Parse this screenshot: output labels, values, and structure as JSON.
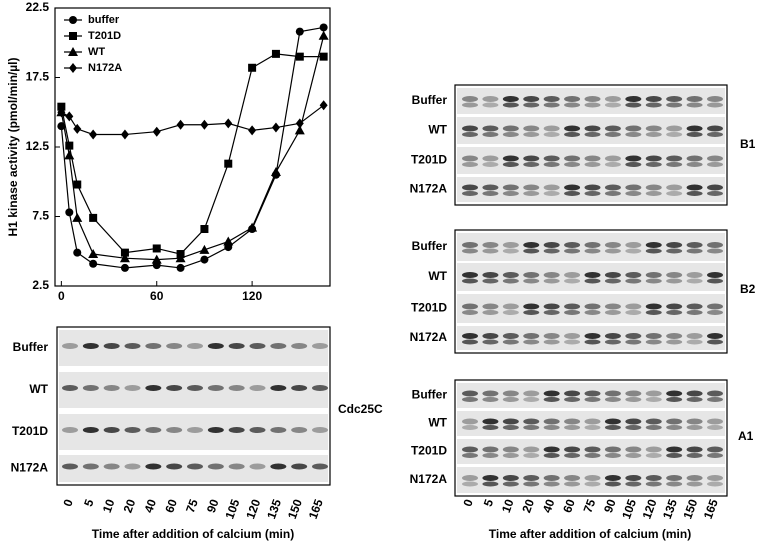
{
  "chart_data": {
    "type": "line",
    "y_label": "H1 kinase activity (pmol/min/µl)",
    "x": [
      0,
      5,
      10,
      20,
      40,
      60,
      75,
      90,
      105,
      120,
      135,
      150,
      165
    ],
    "series": [
      {
        "name": "buffer",
        "color": "#000000",
        "marker": "circle",
        "values": [
          14.0,
          7.8,
          4.9,
          4.1,
          3.8,
          4.0,
          3.8,
          4.4,
          5.3,
          6.6,
          10.5,
          20.8,
          21.1
        ]
      },
      {
        "name": "T201D",
        "color": "#000000",
        "marker": "square",
        "values": [
          15.4,
          12.6,
          9.8,
          7.4,
          4.9,
          5.2,
          4.8,
          6.6,
          11.3,
          18.2,
          19.2,
          19.0,
          19.0
        ]
      },
      {
        "name": "WT",
        "color": "#000000",
        "marker": "triangle",
        "values": [
          15.0,
          11.9,
          7.4,
          4.8,
          4.5,
          4.4,
          4.5,
          5.1,
          5.7,
          6.7,
          10.7,
          13.7,
          20.5
        ]
      },
      {
        "name": "N172A",
        "color": "#000000",
        "marker": "diamond",
        "values": [
          15.0,
          14.7,
          13.8,
          13.4,
          13.4,
          13.6,
          14.1,
          14.1,
          14.2,
          13.7,
          13.9,
          14.2,
          15.5
        ]
      }
    ],
    "xlim": [
      -4,
      169
    ],
    "xticks": [
      0,
      60,
      120
    ],
    "ylim": [
      2.5,
      22.5
    ],
    "yticks": [
      2.5,
      7.5,
      12.5,
      17.5,
      22.5
    ],
    "legend": "upper left"
  },
  "blots": [
    {
      "name": "Cdc25C",
      "rows": [
        "Buffer",
        "WT",
        "T201D",
        "N172A"
      ]
    },
    {
      "name": "B1",
      "rows": [
        "Buffer",
        "WT",
        "T201D",
        "N172A"
      ]
    },
    {
      "name": "B2",
      "rows": [
        "Buffer",
        "WT",
        "T201D",
        "N172A"
      ]
    },
    {
      "name": "A1",
      "rows": [
        "Buffer",
        "WT",
        "T201D",
        "N172A"
      ]
    }
  ],
  "lanes": [
    "0",
    "5",
    "10",
    "20",
    "40",
    "60",
    "75",
    "90",
    "105",
    "120",
    "135",
    "150",
    "165"
  ],
  "x_label": "Time after addition of calcium (min)"
}
